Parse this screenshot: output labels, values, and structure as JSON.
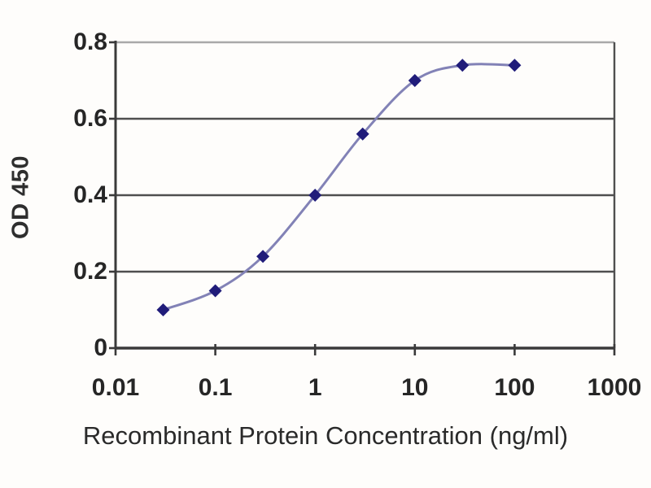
{
  "chart_data": {
    "type": "line",
    "title": "",
    "xlabel": "Recombinant Protein Concentration (ng/ml)",
    "ylabel": "OD 450",
    "x_scale": "log",
    "x": [
      0.03,
      0.1,
      0.3,
      1,
      3,
      10,
      30,
      100
    ],
    "y": [
      0.1,
      0.15,
      0.24,
      0.4,
      0.56,
      0.7,
      0.74,
      0.74
    ],
    "xlim": [
      0.01,
      1000
    ],
    "ylim": [
      0,
      0.8
    ],
    "xtick_labels": [
      "0.01",
      "0.1",
      "1",
      "10",
      "100",
      "1000"
    ],
    "xtick_values": [
      0.01,
      0.1,
      1,
      10,
      100,
      1000
    ],
    "ytick_labels": [
      "0",
      "0.2",
      "0.4",
      "0.6",
      "0.8"
    ],
    "ytick_values": [
      0,
      0.2,
      0.4,
      0.6,
      0.8
    ],
    "grid": "horizontal",
    "legend": "none",
    "marker": "diamond",
    "colors": {
      "line": "#8282b6",
      "marker": "#201c7a",
      "grid_major": "#4f4f4f",
      "grid_top": "#a9a9a9",
      "axis": "#3a3a3a",
      "text": "#262626"
    }
  }
}
